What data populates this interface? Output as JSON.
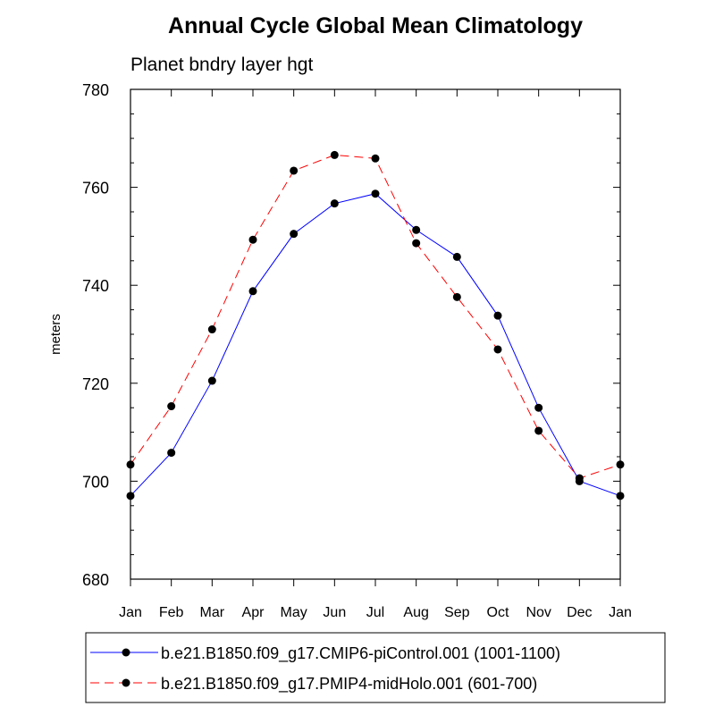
{
  "chart_data": {
    "type": "line",
    "title": "Annual Cycle Global Mean Climatology",
    "subtitle": "Planet bndry layer hgt",
    "xlabel": "",
    "ylabel": "meters",
    "ylim": [
      680,
      780
    ],
    "y_ticks": [
      680,
      700,
      720,
      740,
      760,
      780
    ],
    "y_tick_labels": [
      "680",
      "700",
      "720",
      "740",
      "760",
      "780"
    ],
    "categories": [
      "Jan",
      "Feb",
      "Mar",
      "Apr",
      "May",
      "Jun",
      "Jul",
      "Aug",
      "Sep",
      "Oct",
      "Nov",
      "Dec",
      "Jan"
    ],
    "grid": false,
    "legend_position": "bottom",
    "series": [
      {
        "name": "b.e21.B1850.f09_g17.CMIP6-piControl.001 (1001-1100)",
        "color": "#0000ff",
        "line_style": "solid",
        "marker": "filled-circle",
        "values": [
          697.0,
          705.8,
          720.5,
          738.8,
          750.5,
          756.7,
          758.7,
          751.3,
          745.8,
          733.8,
          715.0,
          700.0,
          697.0
        ]
      },
      {
        "name": "b.e21.B1850.f09_g17.PMIP4-midHolo.001 (601-700)",
        "color": "#ff0000",
        "line_style": "dashed",
        "marker": "filled-circle",
        "values": [
          703.4,
          715.3,
          731.0,
          749.3,
          763.4,
          766.6,
          765.9,
          748.6,
          737.6,
          726.9,
          710.3,
          700.6,
          703.4
        ]
      }
    ]
  }
}
